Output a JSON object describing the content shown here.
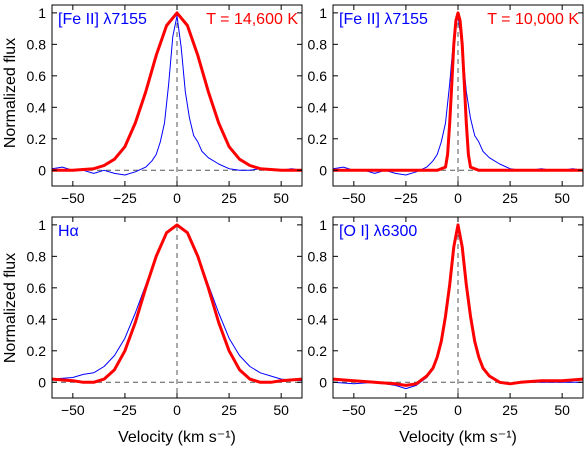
{
  "figure": {
    "shared_ylabel": "Normalized flux",
    "shared_xlabel": "Velocity (km s⁻¹)"
  },
  "colors": {
    "observed": "#0000ff",
    "model": "#ff0000",
    "axes": "#000000",
    "reference": "#555555"
  },
  "chart_data": [
    {
      "type": "line",
      "panel": "top-left",
      "label_left": "[Fe II] λ7155",
      "label_right": "T = 14,600 K",
      "xlim": [
        -60,
        60
      ],
      "ylim": [
        -0.1,
        1.05
      ],
      "xticks": [
        -50,
        -25,
        0,
        25,
        50
      ],
      "yticks": [
        0,
        0.2,
        0.4,
        0.6,
        0.8,
        1
      ],
      "show_x_tick_labels": true,
      "show_y_tick_labels": true,
      "series": [
        {
          "role": "observed",
          "x": [
            -60,
            -55,
            -50,
            -45,
            -40,
            -35,
            -30,
            -25,
            -20,
            -15,
            -12,
            -10,
            -8,
            -6,
            -4,
            -2,
            0,
            2,
            4,
            6,
            8,
            10,
            12,
            15,
            20,
            25,
            30,
            35,
            40,
            45,
            50,
            55,
            60
          ],
          "y": [
            0.01,
            0.02,
            0.0,
            0.0,
            -0.02,
            0.0,
            -0.02,
            -0.03,
            -0.01,
            0.02,
            0.06,
            0.1,
            0.18,
            0.3,
            0.55,
            0.85,
            0.98,
            0.78,
            0.5,
            0.33,
            0.22,
            0.18,
            0.12,
            0.08,
            0.04,
            0.01,
            0.0,
            0.0,
            0.01,
            0.0,
            0.0,
            0.01,
            0.0
          ]
        },
        {
          "role": "model",
          "x": [
            -60,
            -50,
            -40,
            -35,
            -30,
            -25,
            -20,
            -15,
            -10,
            -5,
            0,
            5,
            10,
            15,
            20,
            25,
            30,
            35,
            40,
            50,
            60
          ],
          "y": [
            0.0,
            0.0,
            0.01,
            0.03,
            0.07,
            0.15,
            0.3,
            0.5,
            0.73,
            0.92,
            1.0,
            0.92,
            0.73,
            0.5,
            0.3,
            0.15,
            0.07,
            0.03,
            0.01,
            0.0,
            0.0
          ]
        }
      ]
    },
    {
      "type": "line",
      "panel": "top-right",
      "label_left": "[Fe II] λ7155",
      "label_right": "T = 10,000 K",
      "xlim": [
        -60,
        60
      ],
      "ylim": [
        -0.1,
        1.05
      ],
      "xticks": [
        -50,
        -25,
        0,
        25,
        50
      ],
      "yticks": [
        0,
        0.2,
        0.4,
        0.6,
        0.8,
        1
      ],
      "show_x_tick_labels": true,
      "show_y_tick_labels": true,
      "series": [
        {
          "role": "observed",
          "x": [
            -60,
            -55,
            -50,
            -45,
            -40,
            -35,
            -30,
            -25,
            -20,
            -15,
            -12,
            -10,
            -8,
            -6,
            -4,
            -2,
            0,
            2,
            4,
            6,
            8,
            10,
            12,
            15,
            20,
            25,
            30,
            35,
            40,
            45,
            50,
            55,
            60
          ],
          "y": [
            0.01,
            0.02,
            0.0,
            0.0,
            -0.02,
            0.0,
            -0.02,
            -0.03,
            -0.01,
            0.02,
            0.06,
            0.1,
            0.18,
            0.3,
            0.55,
            0.85,
            0.98,
            0.78,
            0.5,
            0.33,
            0.22,
            0.18,
            0.12,
            0.08,
            0.04,
            0.01,
            0.0,
            0.0,
            0.01,
            0.0,
            0.0,
            0.01,
            0.0
          ]
        },
        {
          "role": "model",
          "x": [
            -60,
            -10,
            -6,
            -5,
            -4,
            -3,
            -2,
            -1,
            0,
            1,
            2,
            3,
            4,
            5,
            6,
            10,
            60
          ],
          "y": [
            0.0,
            0.0,
            0.02,
            0.1,
            0.3,
            0.55,
            0.8,
            0.95,
            1.0,
            0.95,
            0.8,
            0.55,
            0.3,
            0.1,
            0.02,
            0.0,
            0.0
          ]
        }
      ]
    },
    {
      "type": "line",
      "panel": "bottom-left",
      "label_left": "Hα",
      "label_right": "",
      "xlim": [
        -60,
        60
      ],
      "ylim": [
        -0.1,
        1.05
      ],
      "xticks": [
        -50,
        -25,
        0,
        25,
        50
      ],
      "yticks": [
        0,
        0.2,
        0.4,
        0.6,
        0.8,
        1
      ],
      "show_x_tick_labels": true,
      "show_y_tick_labels": true,
      "series": [
        {
          "role": "observed",
          "x": [
            -60,
            -50,
            -45,
            -40,
            -35,
            -30,
            -25,
            -20,
            -15,
            -10,
            -5,
            0,
            5,
            10,
            15,
            20,
            25,
            30,
            35,
            40,
            45,
            50,
            60
          ],
          "y": [
            0.02,
            0.03,
            0.05,
            0.06,
            0.1,
            0.17,
            0.28,
            0.44,
            0.62,
            0.8,
            0.95,
            1.0,
            0.95,
            0.8,
            0.62,
            0.44,
            0.28,
            0.17,
            0.1,
            0.06,
            0.04,
            0.02,
            0.01
          ]
        },
        {
          "role": "model",
          "x": [
            -60,
            -50,
            -45,
            -40,
            -35,
            -30,
            -25,
            -20,
            -15,
            -10,
            -5,
            0,
            5,
            10,
            15,
            20,
            25,
            30,
            35,
            40,
            45,
            50,
            60
          ],
          "y": [
            0.02,
            0.01,
            0.0,
            0.0,
            0.02,
            0.08,
            0.2,
            0.38,
            0.6,
            0.8,
            0.95,
            1.0,
            0.95,
            0.8,
            0.6,
            0.38,
            0.2,
            0.08,
            0.02,
            0.0,
            0.0,
            0.01,
            0.02
          ]
        }
      ]
    },
    {
      "type": "line",
      "panel": "bottom-right",
      "label_left": "[O I] λ6300",
      "label_right": "",
      "xlim": [
        -60,
        60
      ],
      "ylim": [
        -0.1,
        1.05
      ],
      "xticks": [
        -50,
        -25,
        0,
        25,
        50
      ],
      "yticks": [
        0,
        0.2,
        0.4,
        0.6,
        0.8,
        1
      ],
      "show_x_tick_labels": true,
      "show_y_tick_labels": true,
      "series": [
        {
          "role": "observed",
          "x": [
            -60,
            -50,
            -40,
            -30,
            -25,
            -20,
            -15,
            -12,
            -10,
            -8,
            -6,
            -4,
            -2,
            0,
            2,
            4,
            6,
            8,
            10,
            12,
            15,
            20,
            25,
            30,
            40,
            50,
            60
          ],
          "y": [
            0.0,
            -0.01,
            0.0,
            -0.02,
            -0.04,
            -0.02,
            0.03,
            0.08,
            0.15,
            0.25,
            0.4,
            0.6,
            0.85,
            1.0,
            0.85,
            0.6,
            0.4,
            0.25,
            0.15,
            0.08,
            0.04,
            0.0,
            -0.01,
            0.0,
            0.0,
            0.0,
            0.0
          ]
        },
        {
          "role": "model",
          "x": [
            -60,
            -50,
            -40,
            -30,
            -25,
            -20,
            -15,
            -12,
            -10,
            -8,
            -6,
            -4,
            -2,
            0,
            2,
            4,
            6,
            8,
            10,
            12,
            15,
            20,
            25,
            30,
            40,
            50,
            60
          ],
          "y": [
            0.02,
            0.01,
            0.0,
            -0.01,
            -0.02,
            -0.01,
            0.04,
            0.09,
            0.16,
            0.26,
            0.42,
            0.62,
            0.86,
            1.0,
            0.86,
            0.62,
            0.42,
            0.26,
            0.16,
            0.09,
            0.04,
            0.0,
            -0.01,
            0.0,
            0.01,
            0.01,
            0.02
          ]
        }
      ]
    }
  ]
}
